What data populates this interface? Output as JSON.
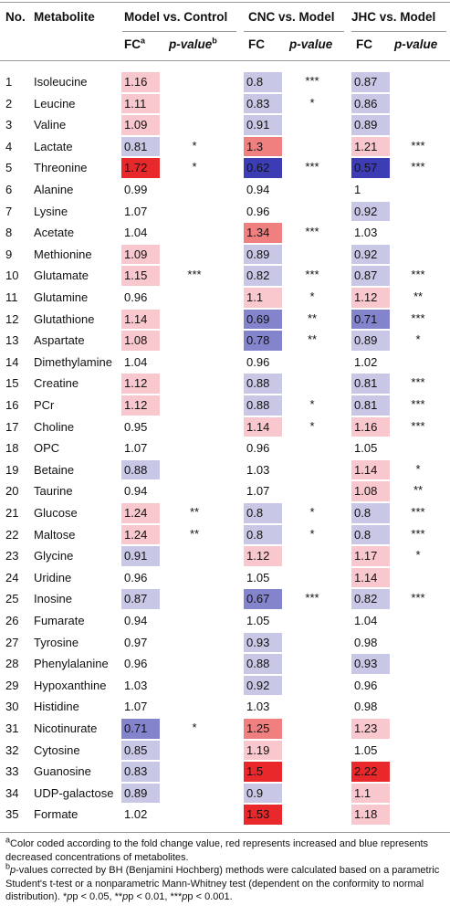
{
  "headers": {
    "no": "No.",
    "metabolite": "Metabolite",
    "group1": "Model vs. Control",
    "group2": "CNC vs. Model",
    "group3": "JHC vs. Model",
    "fc": "FC",
    "fc_sup": "a",
    "pvalue": "p-value",
    "pvalue_sup": "b"
  },
  "colors": {
    "strong_red": "#e8282b",
    "mid_red": "#f08080",
    "light_red": "#f9c8ce",
    "light_blue": "#c8c8e6",
    "mid_blue": "#8484cc",
    "strong_blue": "#3c3cb4"
  },
  "rows": [
    {
      "no": "1",
      "name": "Isoleucine",
      "fc1": "1.16",
      "p1": "",
      "fc2": "0.8",
      "p2": "***",
      "fc3": "0.87",
      "p3": ""
    },
    {
      "no": "2",
      "name": "Leucine",
      "fc1": "1.11",
      "p1": "",
      "fc2": "0.83",
      "p2": "*",
      "fc3": "0.86",
      "p3": ""
    },
    {
      "no": "3",
      "name": "Valine",
      "fc1": "1.09",
      "p1": "",
      "fc2": "0.91",
      "p2": "",
      "fc3": "0.89",
      "p3": ""
    },
    {
      "no": "4",
      "name": "Lactate",
      "fc1": "0.81",
      "p1": "*",
      "fc2": "1.3",
      "p2": "",
      "fc3": "1.21",
      "p3": "***"
    },
    {
      "no": "5",
      "name": "Threonine",
      "fc1": "1.72",
      "p1": "*",
      "fc2": "0.62",
      "p2": "***",
      "fc3": "0.57",
      "p3": "***"
    },
    {
      "no": "6",
      "name": "Alanine",
      "fc1": "0.99",
      "p1": "",
      "fc2": "0.94",
      "p2": "",
      "fc3": "1",
      "p3": ""
    },
    {
      "no": "7",
      "name": "Lysine",
      "fc1": "1.07",
      "p1": "",
      "fc2": "0.96",
      "p2": "",
      "fc3": "0.92",
      "p3": ""
    },
    {
      "no": "8",
      "name": "Acetate",
      "fc1": "1.04",
      "p1": "",
      "fc2": "1.34",
      "p2": "***",
      "fc3": "1.03",
      "p3": ""
    },
    {
      "no": "9",
      "name": "Methionine",
      "fc1": "1.09",
      "p1": "",
      "fc2": "0.89",
      "p2": "",
      "fc3": "0.92",
      "p3": ""
    },
    {
      "no": "10",
      "name": "Glutamate",
      "fc1": "1.15",
      "p1": "***",
      "fc2": "0.82",
      "p2": "***",
      "fc3": "0.87",
      "p3": "***"
    },
    {
      "no": "11",
      "name": "Glutamine",
      "fc1": "0.96",
      "p1": "",
      "fc2": "1.1",
      "p2": "*",
      "fc3": "1.12",
      "p3": "**"
    },
    {
      "no": "12",
      "name": "Glutathione",
      "fc1": "1.14",
      "p1": "",
      "fc2": "0.69",
      "p2": "**",
      "fc3": "0.71",
      "p3": "***"
    },
    {
      "no": "13",
      "name": "Aspartate",
      "fc1": "1.08",
      "p1": "",
      "fc2": "0.78",
      "p2": "**",
      "fc3": "0.89",
      "p3": "*"
    },
    {
      "no": "14",
      "name": "Dimethylamine",
      "fc1": "1.04",
      "p1": "",
      "fc2": "0.96",
      "p2": "",
      "fc3": "1.02",
      "p3": ""
    },
    {
      "no": "15",
      "name": "Creatine",
      "fc1": "1.12",
      "p1": "",
      "fc2": "0.88",
      "p2": "",
      "fc3": "0.81",
      "p3": "***"
    },
    {
      "no": "16",
      "name": "PCr",
      "fc1": "1.12",
      "p1": "",
      "fc2": "0.88",
      "p2": "*",
      "fc3": "0.81",
      "p3": "***"
    },
    {
      "no": "17",
      "name": "Choline",
      "fc1": "0.95",
      "p1": "",
      "fc2": "1.14",
      "p2": "*",
      "fc3": "1.16",
      "p3": "***"
    },
    {
      "no": "18",
      "name": "OPC",
      "fc1": "1.07",
      "p1": "",
      "fc2": "0.96",
      "p2": "",
      "fc3": "1.05",
      "p3": ""
    },
    {
      "no": "19",
      "name": "Betaine",
      "fc1": "0.88",
      "p1": "",
      "fc2": "1.03",
      "p2": "",
      "fc3": "1.14",
      "p3": "*"
    },
    {
      "no": "20",
      "name": "Taurine",
      "fc1": "0.94",
      "p1": "",
      "fc2": "1.07",
      "p2": "",
      "fc3": "1.08",
      "p3": "**"
    },
    {
      "no": "21",
      "name": "Glucose",
      "fc1": "1.24",
      "p1": "**",
      "fc2": "0.8",
      "p2": "*",
      "fc3": "0.8",
      "p3": "***"
    },
    {
      "no": "22",
      "name": "Maltose",
      "fc1": "1.24",
      "p1": "**",
      "fc2": "0.8",
      "p2": "*",
      "fc3": "0.8",
      "p3": "***"
    },
    {
      "no": "23",
      "name": "Glycine",
      "fc1": "0.91",
      "p1": "",
      "fc2": "1.12",
      "p2": "",
      "fc3": "1.17",
      "p3": "*"
    },
    {
      "no": "24",
      "name": "Uridine",
      "fc1": "0.96",
      "p1": "",
      "fc2": "1.05",
      "p2": "",
      "fc3": "1.14",
      "p3": ""
    },
    {
      "no": "25",
      "name": "Inosine",
      "fc1": "0.87",
      "p1": "",
      "fc2": "0.67",
      "p2": "***",
      "fc3": "0.82",
      "p3": "***"
    },
    {
      "no": "26",
      "name": "Fumarate",
      "fc1": "0.94",
      "p1": "",
      "fc2": "1.05",
      "p2": "",
      "fc3": "1.04",
      "p3": ""
    },
    {
      "no": "27",
      "name": "Tyrosine",
      "fc1": "0.97",
      "p1": "",
      "fc2": "0.93",
      "p2": "",
      "fc3": "0.98",
      "p3": ""
    },
    {
      "no": "28",
      "name": "Phenylalanine",
      "fc1": "0.96",
      "p1": "",
      "fc2": "0.88",
      "p2": "",
      "fc3": "0.93",
      "p3": ""
    },
    {
      "no": "29",
      "name": "Hypoxanthine",
      "fc1": "1.03",
      "p1": "",
      "fc2": "0.92",
      "p2": "",
      "fc3": "0.96",
      "p3": ""
    },
    {
      "no": "30",
      "name": "Histidine",
      "fc1": "1.07",
      "p1": "",
      "fc2": "1.03",
      "p2": "",
      "fc3": "0.98",
      "p3": ""
    },
    {
      "no": "31",
      "name": "Nicotinurate",
      "fc1": "0.71",
      "p1": "*",
      "fc2": "1.25",
      "p2": "",
      "fc3": "1.23",
      "p3": ""
    },
    {
      "no": "32",
      "name": "Cytosine",
      "fc1": "0.85",
      "p1": "",
      "fc2": "1.19",
      "p2": "",
      "fc3": "1.05",
      "p3": ""
    },
    {
      "no": "33",
      "name": "Guanosine",
      "fc1": "0.83",
      "p1": "",
      "fc2": "1.5",
      "p2": "",
      "fc3": "2.22",
      "p3": ""
    },
    {
      "no": "34",
      "name": "UDP-galactose",
      "fc1": "0.89",
      "p1": "",
      "fc2": "0.9",
      "p2": "",
      "fc3": "1.1",
      "p3": ""
    },
    {
      "no": "35",
      "name": "Formate",
      "fc1": "1.02",
      "p1": "",
      "fc2": "1.53",
      "p2": "",
      "fc3": "1.18",
      "p3": ""
    }
  ],
  "footnotes": {
    "a_mark": "a",
    "a_text": "Color coded according to the fold change value, red represents increased and blue represents decreased concentrations of metabolites.",
    "b_mark": "b",
    "b_text_pre": "",
    "b_text_p": "p",
    "b_text": "-values corrected by BH (Benjamini Hochberg) methods were calculated based on a parametric Student's t-test or a nonparametric Mann-Whitney test (dependent on the conformity to normal distribution). *",
    "b_p1": "p < 0.05, **",
    "b_p2": "p < 0.01, ***",
    "b_p3": "p < 0.001."
  }
}
